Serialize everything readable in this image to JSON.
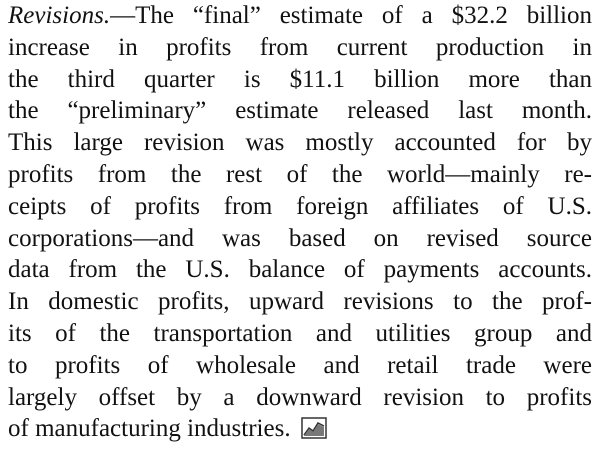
{
  "paragraph": {
    "lead": "Revisions.",
    "lines": [
      "—The “final” estimate of a $32.2 billion",
      "increase in profits from current production in",
      "the third quarter is $11.1 billion more than",
      "the “preliminary” estimate released last month.",
      "This large revision was mostly accounted for by",
      "profits from the rest of the world—mainly re-",
      "ceipts of profits from foreign affiliates of U.S.",
      "corporations—and was based on revised source",
      "data from the U.S. balance of payments accounts.",
      "In domestic profits, upward revisions to the prof-",
      "its of the transportation and utilities group and",
      "to profits of wholesale and retail trade were",
      "largely offset by a downward revision to profits",
      "of manufacturing industries."
    ]
  }
}
